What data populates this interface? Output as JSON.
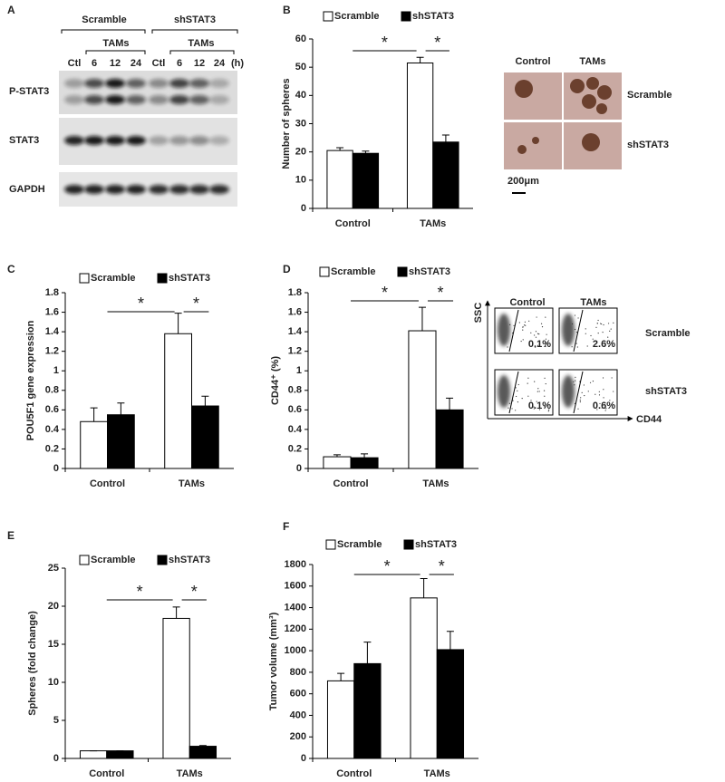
{
  "figure": {
    "panel_a": {
      "label": "A",
      "groups": [
        "Scramble",
        "shSTAT3"
      ],
      "treatment": [
        "TAMs",
        "TAMs"
      ],
      "lanes": [
        "Ctl",
        "6",
        "12",
        "24",
        "Ctl",
        "6",
        "12",
        "24"
      ],
      "unit": "(h)",
      "rows": [
        "P-STAT3",
        "STAT3",
        "GAPDH"
      ]
    },
    "panel_b_images": {
      "columns": [
        "Control",
        "TAMs"
      ],
      "rows": [
        "Scramble",
        "shSTAT3"
      ],
      "scale": "200μm"
    },
    "panel_d_flow": {
      "columns": [
        "Control",
        "TAMs"
      ],
      "rows": [
        "Scramble",
        "shSTAT3"
      ],
      "y_axis": "SSC",
      "x_axis": "CD44",
      "percentages": [
        [
          "0.1%",
          "2.6%"
        ],
        [
          "0.1%",
          "0.6%"
        ]
      ]
    }
  },
  "chart_data": [
    {
      "type": "bar",
      "panel_label": "B",
      "ylabel": "Number of spheres",
      "categories": [
        "Control",
        "TAMs"
      ],
      "series": [
        {
          "name": "Scramble",
          "color": "#ffffff",
          "values": [
            20.5,
            51.5
          ],
          "errors": [
            1,
            2
          ]
        },
        {
          "name": "shSTAT3",
          "color": "#000000",
          "values": [
            19.5,
            23.5
          ],
          "errors": [
            0.8,
            2.5
          ]
        }
      ],
      "ylim": [
        0,
        60
      ],
      "yticks": [
        0,
        10,
        20,
        30,
        40,
        50,
        60
      ],
      "annotations": [
        "*",
        "*"
      ]
    },
    {
      "type": "bar",
      "panel_label": "C",
      "ylabel": "POU5F1 gene expression",
      "categories": [
        "Control",
        "TAMs"
      ],
      "series": [
        {
          "name": "Scramble",
          "color": "#ffffff",
          "values": [
            0.48,
            1.38
          ],
          "errors": [
            0.14,
            0.21
          ]
        },
        {
          "name": "shSTAT3",
          "color": "#000000",
          "values": [
            0.55,
            0.64
          ],
          "errors": [
            0.12,
            0.1
          ]
        }
      ],
      "ylim": [
        0,
        1.8
      ],
      "yticks": [
        0,
        0.2,
        0.4,
        0.6,
        0.8,
        1,
        1.2,
        1.4,
        1.6,
        1.8
      ],
      "annotations": [
        "*",
        "*"
      ]
    },
    {
      "type": "bar",
      "panel_label": "D",
      "ylabel": "CD44⁺ (%)",
      "categories": [
        "Control",
        "TAMs"
      ],
      "series": [
        {
          "name": "Scramble",
          "color": "#ffffff",
          "values": [
            0.12,
            1.41
          ],
          "errors": [
            0.02,
            0.24
          ]
        },
        {
          "name": "shSTAT3",
          "color": "#000000",
          "values": [
            0.11,
            0.6
          ],
          "errors": [
            0.04,
            0.12
          ]
        }
      ],
      "ylim": [
        0,
        1.8
      ],
      "yticks": [
        0,
        0.2,
        0.4,
        0.6,
        0.8,
        1,
        1.2,
        1.4,
        1.6,
        1.8
      ],
      "annotations": [
        "*",
        "*"
      ]
    },
    {
      "type": "bar",
      "panel_label": "E",
      "ylabel": "Spheres (fold change)",
      "categories": [
        "Control",
        "TAMs"
      ],
      "series": [
        {
          "name": "Scramble",
          "color": "#ffffff",
          "values": [
            1,
            18.4
          ],
          "errors": [
            0,
            1.5
          ]
        },
        {
          "name": "shSTAT3",
          "color": "#000000",
          "values": [
            1,
            1.6
          ],
          "errors": [
            0,
            0.1
          ]
        }
      ],
      "ylim": [
        0,
        25
      ],
      "yticks": [
        0,
        5,
        10,
        15,
        20,
        25
      ],
      "annotations": [
        "*",
        "*"
      ]
    },
    {
      "type": "bar",
      "panel_label": "F",
      "ylabel": "Tumor volume (mm³)",
      "categories": [
        "Control",
        "TAMs"
      ],
      "series": [
        {
          "name": "Scramble",
          "color": "#ffffff",
          "values": [
            720,
            1490
          ],
          "errors": [
            70,
            180
          ]
        },
        {
          "name": "shSTAT3",
          "color": "#000000",
          "values": [
            880,
            1010
          ],
          "errors": [
            200,
            170
          ]
        }
      ],
      "ylim": [
        0,
        1800
      ],
      "yticks": [
        0,
        200,
        400,
        600,
        800,
        1000,
        1200,
        1400,
        1600,
        1800
      ],
      "annotations": [
        "*",
        "*"
      ]
    }
  ]
}
